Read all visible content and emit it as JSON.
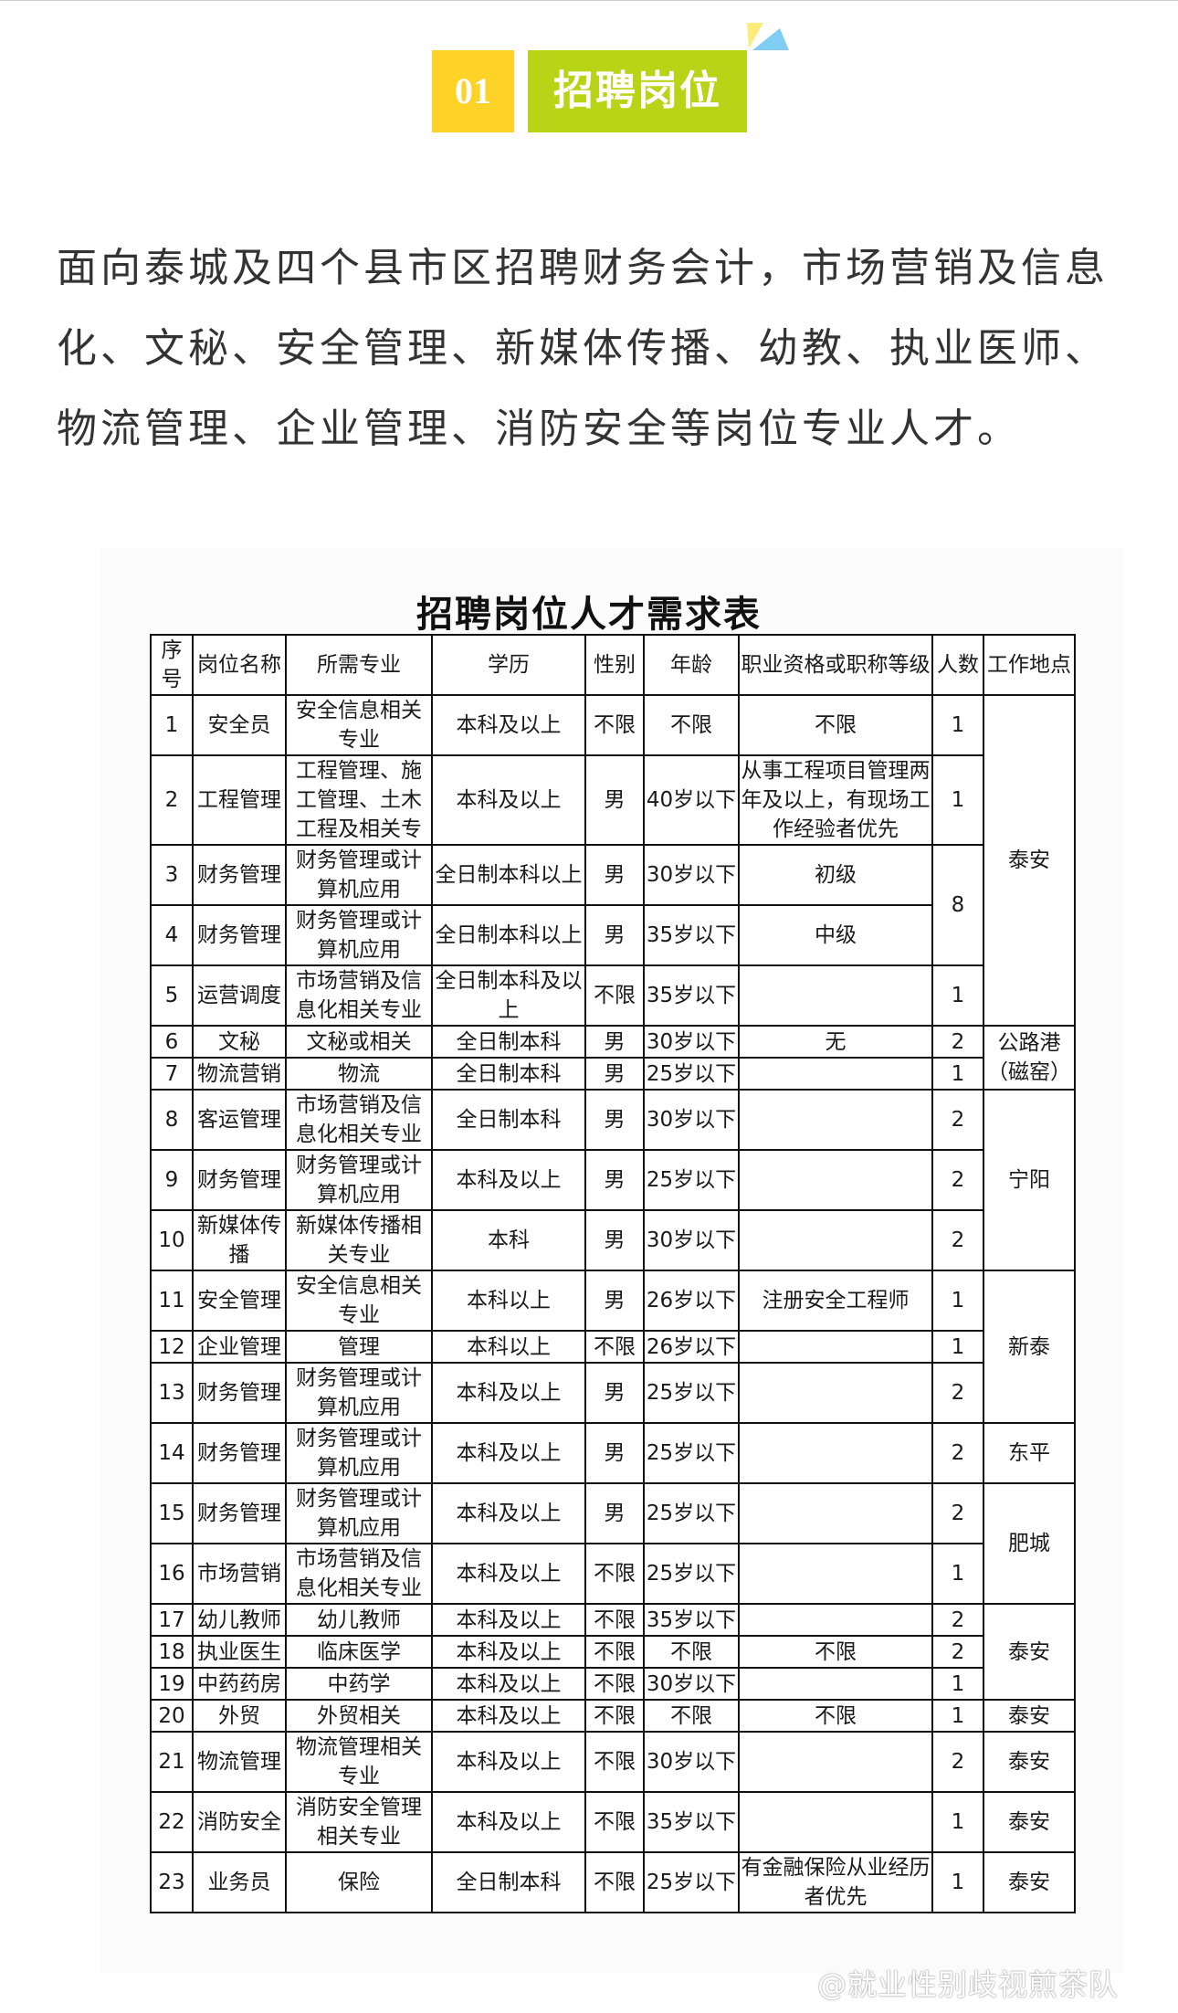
{
  "section": {
    "number": "01",
    "title": "招聘岗位"
  },
  "intro": "面向泰城及四个县市区招聘财务会计，市场营销及信息化、文秘、安全管理、新媒体传播、幼教、执业医师、物流管理、企业管理、消防安全等岗位专业人才。",
  "table": {
    "title": "招聘岗位人才需求表",
    "headers": [
      "序号",
      "岗位名称",
      "所需专业",
      "学历",
      "性别",
      "年龄",
      "职业资格或职称等级",
      "人数",
      "工作地点"
    ],
    "rows": [
      {
        "no": "1",
        "position": "安全员",
        "major": "安全信息相关专业",
        "education": "本科及以上",
        "gender": "不限",
        "age": "不限",
        "qualification": "不限",
        "count": "1",
        "location": "泰安"
      },
      {
        "no": "2",
        "position": "工程管理",
        "major": "工程管理、施工管理、土木工程及相关专",
        "education": "本科及以上",
        "gender": "男",
        "age": "40岁以下",
        "qualification": "从事工程项目管理两年及以上，有现场工作经验者优先",
        "count": "1",
        "location": "泰安"
      },
      {
        "no": "3",
        "position": "财务管理",
        "major": "财务管理或计算机应用",
        "education": "全日制本科以上",
        "gender": "男",
        "age": "30岁以下",
        "qualification": "初级",
        "count": "8",
        "location": "泰安"
      },
      {
        "no": "4",
        "position": "财务管理",
        "major": "财务管理或计算机应用",
        "education": "全日制本科以上",
        "gender": "男",
        "age": "35岁以下",
        "qualification": "中级",
        "count": "8",
        "location": "泰安"
      },
      {
        "no": "5",
        "position": "运营调度",
        "major": "市场营销及信息化相关专业",
        "education": "全日制本科及以上",
        "gender": "不限",
        "age": "35岁以下",
        "qualification": "",
        "count": "1",
        "location": "泰安"
      },
      {
        "no": "6",
        "position": "文秘",
        "major": "文秘或相关",
        "education": "全日制本科",
        "gender": "男",
        "age": "30岁以下",
        "qualification": "无",
        "count": "2",
        "location": "公路港（磁窑）"
      },
      {
        "no": "7",
        "position": "物流营销",
        "major": "物流",
        "education": "全日制本科",
        "gender": "男",
        "age": "25岁以下",
        "qualification": "",
        "count": "1",
        "location": "公路港（磁窑）"
      },
      {
        "no": "8",
        "position": "客运管理",
        "major": "市场营销及信息化相关专业",
        "education": "全日制本科",
        "gender": "男",
        "age": "30岁以下",
        "qualification": "",
        "count": "2",
        "location": "宁阳"
      },
      {
        "no": "9",
        "position": "财务管理",
        "major": "财务管理或计算机应用",
        "education": "本科及以上",
        "gender": "男",
        "age": "25岁以下",
        "qualification": "",
        "count": "2",
        "location": "宁阳"
      },
      {
        "no": "10",
        "position": "新媒体传播",
        "major": "新媒体传播相关专业",
        "education": "本科",
        "gender": "男",
        "age": "30岁以下",
        "qualification": "",
        "count": "2",
        "location": "宁阳"
      },
      {
        "no": "11",
        "position": "安全管理",
        "major": "安全信息相关专业",
        "education": "本科以上",
        "gender": "男",
        "age": "26岁以下",
        "qualification": "注册安全工程师",
        "count": "1",
        "location": "新泰"
      },
      {
        "no": "12",
        "position": "企业管理",
        "major": "管理",
        "education": "本科以上",
        "gender": "不限",
        "age": "26岁以下",
        "qualification": "",
        "count": "1",
        "location": "新泰"
      },
      {
        "no": "13",
        "position": "财务管理",
        "major": "财务管理或计算机应用",
        "education": "本科及以上",
        "gender": "男",
        "age": "25岁以下",
        "qualification": "",
        "count": "2",
        "location": "新泰"
      },
      {
        "no": "14",
        "position": "财务管理",
        "major": "财务管理或计算机应用",
        "education": "本科及以上",
        "gender": "男",
        "age": "25岁以下",
        "qualification": "",
        "count": "2",
        "location": "东平"
      },
      {
        "no": "15",
        "position": "财务管理",
        "major": "财务管理或计算机应用",
        "education": "本科及以上",
        "gender": "男",
        "age": "25岁以下",
        "qualification": "",
        "count": "2",
        "location": "肥城"
      },
      {
        "no": "16",
        "position": "市场营销",
        "major": "市场营销及信息化相关专业",
        "education": "本科及以上",
        "gender": "不限",
        "age": "25岁以下",
        "qualification": "",
        "count": "1",
        "location": "肥城"
      },
      {
        "no": "17",
        "position": "幼儿教师",
        "major": "幼儿教师",
        "education": "本科及以上",
        "gender": "不限",
        "age": "35岁以下",
        "qualification": "",
        "count": "2",
        "location": "泰安"
      },
      {
        "no": "18",
        "position": "执业医生",
        "major": "临床医学",
        "education": "本科及以上",
        "gender": "不限",
        "age": "不限",
        "qualification": "不限",
        "count": "2",
        "location": "泰安"
      },
      {
        "no": "19",
        "position": "中药药房",
        "major": "中药学",
        "education": "本科及以上",
        "gender": "不限",
        "age": "30岁以下",
        "qualification": "",
        "count": "1",
        "location": "泰安"
      },
      {
        "no": "20",
        "position": "外贸",
        "major": "外贸相关",
        "education": "本科及以上",
        "gender": "不限",
        "age": "不限",
        "qualification": "不限",
        "count": "1",
        "location": "泰安"
      },
      {
        "no": "21",
        "position": "物流管理",
        "major": "物流管理相关专业",
        "education": "本科及以上",
        "gender": "不限",
        "age": "30岁以下",
        "qualification": "",
        "count": "2",
        "location": "泰安"
      },
      {
        "no": "22",
        "position": "消防安全",
        "major": "消防安全管理相关专业",
        "education": "本科及以上",
        "gender": "不限",
        "age": "35岁以下",
        "qualification": "",
        "count": "1",
        "location": "泰安"
      },
      {
        "no": "23",
        "position": "业务员",
        "major": "保险",
        "education": "全日制本科",
        "gender": "不限",
        "age": "25岁以下",
        "qualification": "有金融保险从业经历者优先",
        "count": "1",
        "location": "泰安"
      }
    ]
  },
  "watermark": "@就业性别歧视煎茶队",
  "colors": {
    "badge_number": "#fed227",
    "badge_title": "#b7d416",
    "triangle_yellow": "#fdeb7a",
    "triangle_blue": "#7fcdf2"
  }
}
